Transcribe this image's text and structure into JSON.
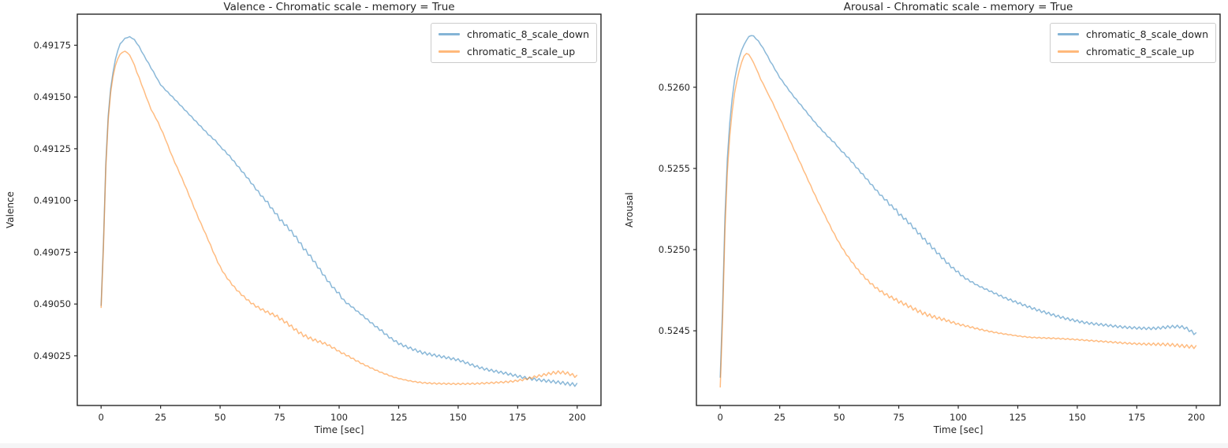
{
  "figure": {
    "background": "#ffffff",
    "bottom_strip_color": "#f5f5f6",
    "text_color": "#262626",
    "spine_color": "#262626",
    "legend_border_color": "#cccccc"
  },
  "chart_data": [
    {
      "type": "line",
      "title": "Valence - Chromatic scale - memory = True",
      "xlabel": "Time [sec]",
      "ylabel": "Valence",
      "xlim": [
        -10,
        210
      ],
      "ylim": [
        0.49001,
        0.4919
      ],
      "xticks": [
        0,
        25,
        50,
        75,
        100,
        125,
        150,
        175,
        200
      ],
      "yticks": [
        0.49025,
        0.4905,
        0.49075,
        0.491,
        0.49125,
        0.4915,
        0.49175
      ],
      "ytick_labels": [
        "0.49025",
        "0.49050",
        "0.49075",
        "0.49100",
        "0.49125",
        "0.49150",
        "0.49175"
      ],
      "grid": false,
      "legend_position": "upper right",
      "series": [
        {
          "name": "chromatic_8_scale_down",
          "color": "#1f77b4",
          "opacity": 0.52,
          "keyframes_t_value_halfband": [
            [
              0,
              0.49049,
              1e-06
            ],
            [
              1,
              0.4908,
              1e-06
            ],
            [
              2,
              0.49118,
              1.2e-06
            ],
            [
              3,
              0.49141,
              1.2e-06
            ],
            [
              4,
              0.49154,
              1.3e-06
            ],
            [
              5,
              0.49162,
              1.3e-06
            ],
            [
              6,
              0.49168,
              1.4e-06
            ],
            [
              7,
              0.491725,
              1.4e-06
            ],
            [
              8,
              0.491755,
              1.5e-06
            ],
            [
              9,
              0.49177,
              1.5e-06
            ],
            [
              10,
              0.491782,
              1.5e-06
            ],
            [
              11,
              0.491788,
              1.6e-06
            ],
            [
              12,
              0.49179,
              1.6e-06
            ],
            [
              13,
              0.491785,
              1.7e-06
            ],
            [
              15,
              0.49176,
              1.8e-06
            ],
            [
              18,
              0.4917,
              1.9e-06
            ],
            [
              21,
              0.49164,
              2e-06
            ],
            [
              25,
              0.49156,
              2e-06
            ],
            [
              30,
              0.4915,
              2.2e-06
            ],
            [
              35,
              0.49144,
              2.4e-06
            ],
            [
              40,
              0.49138,
              2.6e-06
            ],
            [
              45,
              0.49132,
              2.8e-06
            ],
            [
              50,
              0.49126,
              3e-06
            ],
            [
              60,
              0.49113,
              4.2e-06
            ],
            [
              70,
              0.49099,
              6e-06
            ],
            [
              75,
              0.49091,
              7.5e-06
            ],
            [
              85,
              0.49077,
              8e-06
            ],
            [
              100,
              0.49055,
              6e-06
            ],
            [
              107,
              0.49047,
              3e-06
            ],
            [
              118,
              0.49037,
              5.5e-06
            ],
            [
              125,
              0.49031,
              6e-06
            ],
            [
              135,
              0.490265,
              6.5e-06
            ],
            [
              150,
              0.49023,
              6e-06
            ],
            [
              160,
              0.49019,
              6e-06
            ],
            [
              170,
              0.490165,
              6.2e-06
            ],
            [
              180,
              0.49014,
              6.5e-06
            ],
            [
              190,
              0.490125,
              7e-06
            ],
            [
              200,
              0.49011,
              8.5e-06
            ]
          ]
        },
        {
          "name": "chromatic_8_scale_up",
          "color": "#ff7f0e",
          "opacity": 0.52,
          "keyframes_t_value_halfband": [
            [
              0,
              0.49048,
              1e-06
            ],
            [
              1,
              0.49078,
              1e-06
            ],
            [
              2,
              0.49116,
              1.1e-06
            ],
            [
              3,
              0.49139,
              1.1e-06
            ],
            [
              4,
              0.49152,
              1.2e-06
            ],
            [
              5,
              0.4916,
              1.2e-06
            ],
            [
              6,
              0.49165,
              1.3e-06
            ],
            [
              7,
              0.491685,
              1.3e-06
            ],
            [
              8,
              0.491705,
              1.4e-06
            ],
            [
              9,
              0.491717,
              1.4e-06
            ],
            [
              10,
              0.49172,
              1.4e-06
            ],
            [
              11,
              0.491715,
              1.5e-06
            ],
            [
              13,
              0.49168,
              1.5e-06
            ],
            [
              15,
              0.49162,
              1.6e-06
            ],
            [
              18,
              0.49153,
              1.7e-06
            ],
            [
              21,
              0.49144,
              1.8e-06
            ],
            [
              25,
              0.49135,
              1.8e-06
            ],
            [
              30,
              0.49121,
              2e-06
            ],
            [
              35,
              0.49108,
              2.2e-06
            ],
            [
              40,
              0.49094,
              2.4e-06
            ],
            [
              45,
              0.49081,
              2.6e-06
            ],
            [
              50,
              0.49068,
              3e-06
            ],
            [
              55,
              0.490595,
              3.5e-06
            ],
            [
              60,
              0.490535,
              4.5e-06
            ],
            [
              65,
              0.49049,
              5.5e-06
            ],
            [
              70,
              0.49046,
              6.5e-06
            ],
            [
              75,
              0.49043,
              7.5e-06
            ],
            [
              85,
              0.49035,
              8e-06
            ],
            [
              95,
              0.490305,
              5.5e-06
            ],
            [
              100,
              0.49027,
              4.5e-06
            ],
            [
              110,
              0.49021,
              3e-06
            ],
            [
              120,
              0.49016,
              2.2e-06
            ],
            [
              127,
              0.490135,
              1.5e-06
            ],
            [
              135,
              0.49012,
              3e-06
            ],
            [
              145,
              0.490115,
              3.5e-06
            ],
            [
              155,
              0.490115,
              3.5e-06
            ],
            [
              165,
              0.49012,
              3.8e-06
            ],
            [
              175,
              0.49013,
              4.5e-06
            ],
            [
              185,
              0.490155,
              6e-06
            ],
            [
              192,
              0.49017,
              7.5e-06
            ],
            [
              196,
              0.490165,
              7.2e-06
            ],
            [
              200,
              0.49015,
              7e-06
            ]
          ]
        }
      ]
    },
    {
      "type": "line",
      "title": "Arousal - Chromatic scale - memory = True",
      "xlabel": "Time [sec]",
      "ylabel": "Arousal",
      "xlim": [
        -10,
        210
      ],
      "ylim": [
        0.52404,
        0.52645
      ],
      "xticks": [
        0,
        25,
        50,
        75,
        100,
        125,
        150,
        175,
        200
      ],
      "yticks": [
        0.5245,
        0.525,
        0.5255,
        0.526
      ],
      "ytick_labels": [
        "0.5245",
        "0.5250",
        "0.5255",
        "0.5260"
      ],
      "grid": false,
      "legend_position": "upper right",
      "series": [
        {
          "name": "chromatic_8_scale_down",
          "color": "#1f77b4",
          "opacity": 0.52,
          "keyframes_t_value_halfband": [
            [
              0,
              0.52421,
              1e-06
            ],
            [
              1,
              0.52465,
              1e-06
            ],
            [
              2,
              0.5252,
              1.2e-06
            ],
            [
              3,
              0.52556,
              1.3e-06
            ],
            [
              4,
              0.52578,
              1.4e-06
            ],
            [
              5,
              0.52593,
              1.5e-06
            ],
            [
              6,
              0.52604,
              1.6e-06
            ],
            [
              7,
              0.52612,
              1.7e-06
            ],
            [
              8,
              0.52618,
              1.8e-06
            ],
            [
              9,
              0.52623,
              1.9e-06
            ],
            [
              10,
              0.52626,
              2e-06
            ],
            [
              11,
              0.52629,
              2e-06
            ],
            [
              12,
              0.52631,
              2e-06
            ],
            [
              13,
              0.52632,
              2.1e-06
            ],
            [
              15,
              0.5263,
              2.2e-06
            ],
            [
              18,
              0.52624,
              2.3e-06
            ],
            [
              21,
              0.52616,
              2.4e-06
            ],
            [
              25,
              0.52606,
              2.5e-06
            ],
            [
              30,
              0.52596,
              2.7e-06
            ],
            [
              35,
              0.52587,
              2.9e-06
            ],
            [
              40,
              0.52578,
              3.2e-06
            ],
            [
              45,
              0.5257,
              3.6e-06
            ],
            [
              50,
              0.52562,
              4e-06
            ],
            [
              60,
              0.52546,
              5.5e-06
            ],
            [
              70,
              0.5253,
              7.5e-06
            ],
            [
              75,
              0.52522,
              9.5e-06
            ],
            [
              88,
              0.52503,
              1.05e-05
            ],
            [
              100,
              0.52486,
              7.5e-06
            ],
            [
              108,
              0.52478,
              4e-06
            ],
            [
              120,
              0.5247,
              6.5e-06
            ],
            [
              135,
              0.52462,
              8e-06
            ],
            [
              150,
              0.52456,
              7.5e-06
            ],
            [
              162,
              0.524535,
              7.2e-06
            ],
            [
              172,
              0.52452,
              7.2e-06
            ],
            [
              182,
              0.524515,
              7.8e-06
            ],
            [
              190,
              0.524525,
              8.5e-06
            ],
            [
              195,
              0.52452,
              9e-06
            ],
            [
              200,
              0.52448,
              9.5e-06
            ]
          ]
        },
        {
          "name": "chromatic_8_scale_up",
          "color": "#ff7f0e",
          "opacity": 0.52,
          "keyframes_t_value_halfband": [
            [
              0,
              0.52415,
              1e-06
            ],
            [
              1,
              0.52458,
              1e-06
            ],
            [
              2,
              0.52512,
              1.1e-06
            ],
            [
              3,
              0.52548,
              1.2e-06
            ],
            [
              4,
              0.5257,
              1.3e-06
            ],
            [
              5,
              0.52585,
              1.4e-06
            ],
            [
              6,
              0.52596,
              1.5e-06
            ],
            [
              7,
              0.52604,
              1.6e-06
            ],
            [
              8,
              0.5261,
              1.7e-06
            ],
            [
              9,
              0.526155,
              1.8e-06
            ],
            [
              10,
              0.52619,
              1.8e-06
            ],
            [
              11,
              0.52621,
              1.9e-06
            ],
            [
              12,
              0.5262,
              1.9e-06
            ],
            [
              14,
              0.52615,
              2e-06
            ],
            [
              17,
              0.52605,
              2e-06
            ],
            [
              20,
              0.52596,
              2.1e-06
            ],
            [
              25,
              0.52581,
              2.2e-06
            ],
            [
              30,
              0.52565,
              2.4e-06
            ],
            [
              35,
              0.52549,
              2.6e-06
            ],
            [
              40,
              0.52533,
              2.8e-06
            ],
            [
              45,
              0.52518,
              3e-06
            ],
            [
              50,
              0.52504,
              3.5e-06
            ],
            [
              55,
              0.52493,
              4.5e-06
            ],
            [
              60,
              0.52484,
              5.8e-06
            ],
            [
              65,
              0.52477,
              7.5e-06
            ],
            [
              70,
              0.52472,
              9e-06
            ],
            [
              75,
              0.52468,
              1e-05
            ],
            [
              85,
              0.52461,
              1.1e-05
            ],
            [
              95,
              0.524565,
              8.5e-06
            ],
            [
              100,
              0.52454,
              6.5e-06
            ],
            [
              112,
              0.5245,
              4e-06
            ],
            [
              122,
              0.524475,
              2.5e-06
            ],
            [
              130,
              0.52446,
              3e-06
            ],
            [
              145,
              0.52445,
              3.5e-06
            ],
            [
              160,
              0.524435,
              4e-06
            ],
            [
              175,
              0.52442,
              5.5e-06
            ],
            [
              188,
              0.524415,
              9e-06
            ],
            [
              200,
              0.5244,
              1.05e-05
            ]
          ]
        }
      ]
    }
  ]
}
